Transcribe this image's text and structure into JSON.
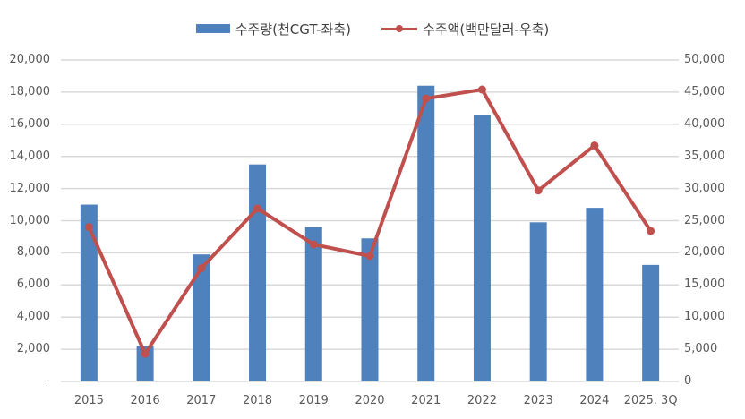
{
  "chart_data": {
    "type": "bar+line",
    "title": "",
    "categories": [
      "2015",
      "2016",
      "2017",
      "2018",
      "2019",
      "2020",
      "2021",
      "2022",
      "2023",
      "2024",
      "2025. 3Q"
    ],
    "series": [
      {
        "name": "수주량(천CGT-좌축)",
        "type": "bar",
        "axis": "left",
        "color": "#4f81bd",
        "values": [
          11000,
          2200,
          7900,
          13500,
          9600,
          8900,
          18400,
          16600,
          9900,
          10800,
          7250
        ]
      },
      {
        "name": "수주액(백만달러-우축)",
        "type": "line",
        "axis": "right",
        "color": "#c0504d",
        "values": [
          24000,
          4300,
          17600,
          26900,
          21300,
          19500,
          44000,
          45400,
          29700,
          36700,
          23400
        ]
      }
    ],
    "y_left": {
      "label": "",
      "ylim": [
        0,
        20000
      ],
      "ticks": [
        "-",
        "2,000",
        "4,000",
        "6,000",
        "8,000",
        "10,000",
        "12,000",
        "14,000",
        "16,000",
        "18,000",
        "20,000"
      ]
    },
    "y_right": {
      "label": "",
      "ylim": [
        0,
        50000
      ],
      "ticks": [
        "0",
        "5,000",
        "10,000",
        "15,000",
        "20,000",
        "25,000",
        "30,000",
        "35,000",
        "40,000",
        "45,000",
        "50,000"
      ]
    },
    "grid": true,
    "legend_position": "top"
  },
  "legend": {
    "bar_label": "수주량(천CGT-좌축)",
    "line_label": "수주액(백만달러-우축)"
  }
}
